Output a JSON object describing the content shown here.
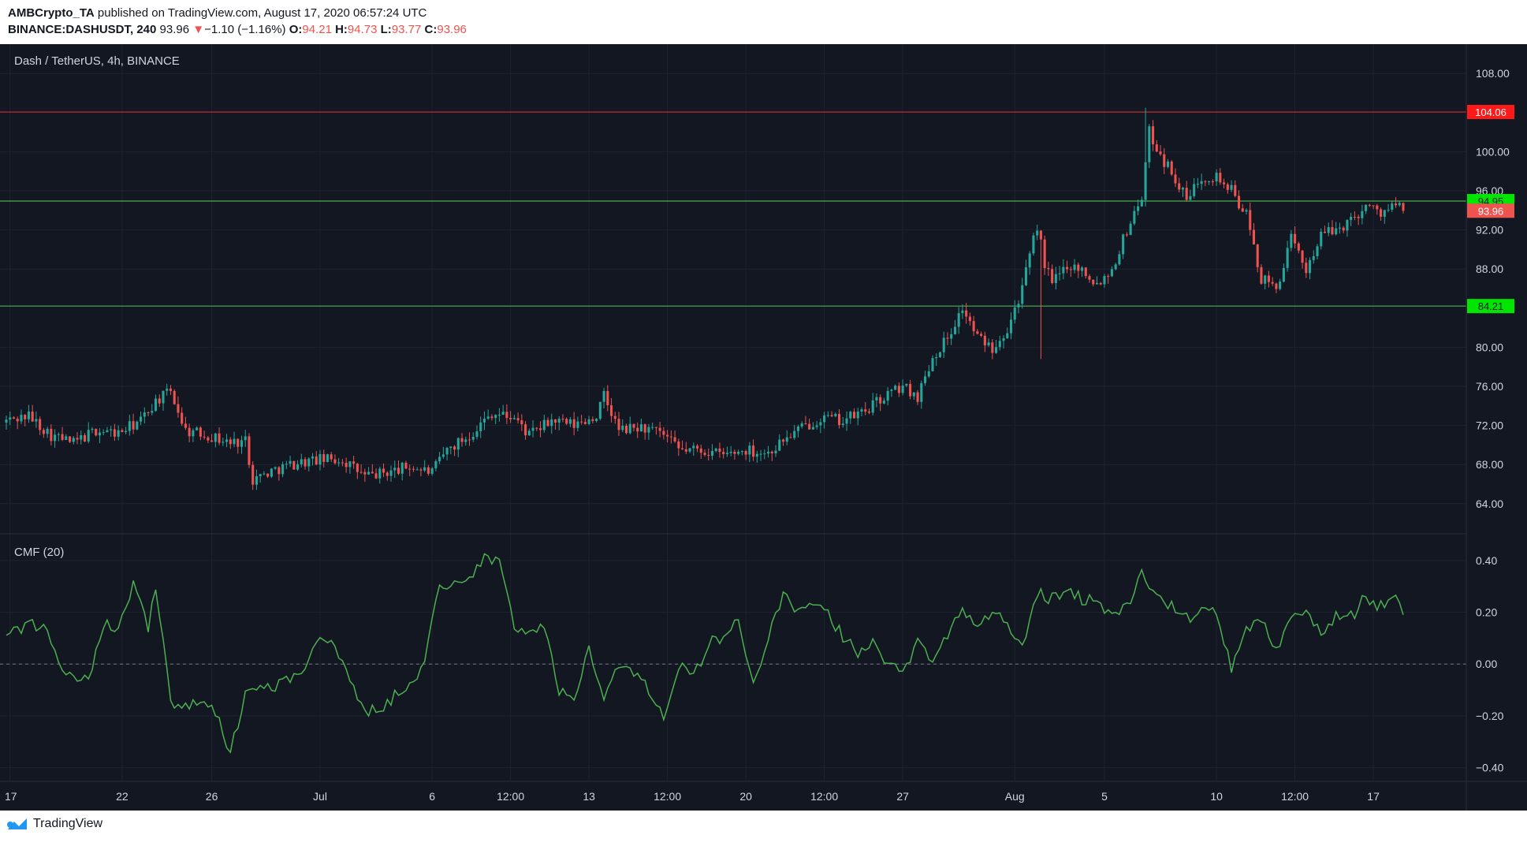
{
  "header": {
    "publisher": "AMBCrypto_TA",
    "published_text": "published on TradingView.com, August 17, 2020 06:57:24 UTC",
    "symbol": "BINANCE:DASHUSDT, 240",
    "last": "93.96",
    "change_arrow": "▼",
    "change": "−1.10 (−1.16%)",
    "o_label": "O:",
    "o_value": "94.21",
    "h_label": "H:",
    "h_value": "94.73",
    "l_label": "L:",
    "l_value": "93.77",
    "c_label": "C:",
    "c_value": "93.96"
  },
  "footer": {
    "brand": "TradingView",
    "logo_icon": "tradingview-logo-icon"
  },
  "colors": {
    "background": "#131722",
    "grid": "#1e2330",
    "up": "#26a69a",
    "down": "#ef5350",
    "resistance": "#d32f2f",
    "support": "#4caf50",
    "cmf": "#4caf50",
    "text": "#d1d4dc"
  },
  "chart_data": [
    {
      "type": "candlestick",
      "title": "Dash / TetherUS, 4h, BINANCE",
      "ylim": [
        61,
        111
      ],
      "y_ticks": [
        64,
        68,
        72,
        76,
        80,
        88,
        92,
        96,
        100,
        108
      ],
      "y_tick_labels": [
        "64.00",
        "68.00",
        "72.00",
        "76.00",
        "80.00",
        "88.00",
        "92.00",
        "96.00",
        "100.00",
        "108.00"
      ],
      "x_ticks": [
        {
          "bar": 1,
          "label": "17"
        },
        {
          "bar": 31,
          "label": "22"
        },
        {
          "bar": 55,
          "label": "26"
        },
        {
          "bar": 84,
          "label": "Jul"
        },
        {
          "bar": 114,
          "label": "6"
        },
        {
          "bar": 135,
          "label": "12:00"
        },
        {
          "bar": 156,
          "label": "13"
        },
        {
          "bar": 177,
          "label": "12:00"
        },
        {
          "bar": 198,
          "label": "20"
        },
        {
          "bar": 219,
          "label": "12:00"
        },
        {
          "bar": 240,
          "label": "27"
        },
        {
          "bar": 270,
          "label": "Aug"
        },
        {
          "bar": 294,
          "label": "5"
        },
        {
          "bar": 324,
          "label": "10"
        },
        {
          "bar": 345,
          "label": "12:00"
        },
        {
          "bar": 366,
          "label": "17"
        }
      ],
      "levels": [
        {
          "value": 104.06,
          "label": "104.06",
          "kind": "resistance"
        },
        {
          "value": 94.95,
          "label": "94.95",
          "kind": "support"
        },
        {
          "value": 84.21,
          "label": "84.21",
          "kind": "support"
        }
      ],
      "last_price": {
        "value": 93.96,
        "label": "93.96"
      },
      "close_anchors": [
        [
          0,
          72.5
        ],
        [
          6,
          73
        ],
        [
          12,
          71
        ],
        [
          18,
          70.2
        ],
        [
          24,
          71.5
        ],
        [
          30,
          71.2
        ],
        [
          36,
          72.5
        ],
        [
          40,
          74.5
        ],
        [
          44,
          75.5
        ],
        [
          48,
          71.5
        ],
        [
          54,
          71
        ],
        [
          60,
          70.2
        ],
        [
          64,
          70.5
        ],
        [
          66,
          66.5
        ],
        [
          72,
          67.5
        ],
        [
          78,
          68.2
        ],
        [
          84,
          68.5
        ],
        [
          90,
          68.5
        ],
        [
          96,
          66.8
        ],
        [
          102,
          67.2
        ],
        [
          108,
          67.8
        ],
        [
          114,
          67.2
        ],
        [
          118,
          69.5
        ],
        [
          124,
          71
        ],
        [
          130,
          73.3
        ],
        [
          136,
          72.8
        ],
        [
          140,
          71
        ],
        [
          146,
          72.5
        ],
        [
          152,
          72
        ],
        [
          158,
          73
        ],
        [
          160,
          75
        ],
        [
          164,
          71.5
        ],
        [
          170,
          71.8
        ],
        [
          176,
          71
        ],
        [
          180,
          69.5
        ],
        [
          186,
          69.5
        ],
        [
          192,
          69
        ],
        [
          198,
          69.5
        ],
        [
          204,
          69.2
        ],
        [
          208,
          70.5
        ],
        [
          212,
          71.5
        ],
        [
          218,
          72.8
        ],
        [
          224,
          72.5
        ],
        [
          230,
          73.5
        ],
        [
          236,
          75.2
        ],
        [
          240,
          76
        ],
        [
          244,
          75
        ],
        [
          248,
          79
        ],
        [
          252,
          81
        ],
        [
          256,
          84
        ],
        [
          260,
          81
        ],
        [
          264,
          80
        ],
        [
          268,
          82
        ],
        [
          272,
          86
        ],
        [
          276,
          92.5
        ],
        [
          278,
          88.5
        ],
        [
          280,
          86.5
        ],
        [
          284,
          88.5
        ],
        [
          288,
          88
        ],
        [
          292,
          86.5
        ],
        [
          296,
          88
        ],
        [
          300,
          92
        ],
        [
          304,
          95.5
        ],
        [
          306,
          102
        ],
        [
          310,
          99
        ],
        [
          312,
          98
        ],
        [
          316,
          95
        ],
        [
          320,
          97.5
        ],
        [
          324,
          97.5
        ],
        [
          328,
          96
        ],
        [
          332,
          93.5
        ],
        [
          336,
          87
        ],
        [
          340,
          86
        ],
        [
          344,
          91
        ],
        [
          348,
          88
        ],
        [
          352,
          91.5
        ],
        [
          356,
          92
        ],
        [
          360,
          93
        ],
        [
          364,
          94.5
        ],
        [
          368,
          93.8
        ],
        [
          372,
          94.5
        ],
        [
          374,
          93.96
        ]
      ],
      "highs": [
        {
          "bar": 305,
          "value": 104.5
        }
      ],
      "lows": [
        {
          "bar": 277,
          "value": 78.8
        }
      ]
    },
    {
      "type": "line",
      "title": "CMF (20)",
      "ylim": [
        -0.45,
        0.5
      ],
      "y_ticks": [
        -0.4,
        -0.2,
        0,
        0.2,
        0.4
      ],
      "y_tick_labels": [
        "−0.40",
        "−0.20",
        "0.00",
        "0.20",
        "0.40"
      ],
      "zero_line": true,
      "anchors": [
        [
          0,
          0.12
        ],
        [
          6,
          0.15
        ],
        [
          10,
          0.14
        ],
        [
          14,
          0.0
        ],
        [
          18,
          -0.04
        ],
        [
          22,
          -0.05
        ],
        [
          26,
          0.15
        ],
        [
          30,
          0.14
        ],
        [
          34,
          0.3
        ],
        [
          38,
          0.14
        ],
        [
          40,
          0.31
        ],
        [
          44,
          -0.15
        ],
        [
          50,
          -0.16
        ],
        [
          56,
          -0.18
        ],
        [
          60,
          -0.35
        ],
        [
          64,
          -0.1
        ],
        [
          70,
          -0.09
        ],
        [
          76,
          -0.06
        ],
        [
          80,
          0.0
        ],
        [
          84,
          0.12
        ],
        [
          88,
          0.05
        ],
        [
          92,
          -0.05
        ],
        [
          96,
          -0.19
        ],
        [
          100,
          -0.17
        ],
        [
          106,
          -0.1
        ],
        [
          112,
          0.0
        ],
        [
          116,
          0.32
        ],
        [
          120,
          0.3
        ],
        [
          124,
          0.34
        ],
        [
          128,
          0.42
        ],
        [
          132,
          0.38
        ],
        [
          136,
          0.15
        ],
        [
          140,
          0.12
        ],
        [
          144,
          0.14
        ],
        [
          148,
          -0.1
        ],
        [
          152,
          -0.12
        ],
        [
          156,
          0.05
        ],
        [
          160,
          -0.12
        ],
        [
          164,
          0.0
        ],
        [
          170,
          -0.05
        ],
        [
          176,
          -0.2
        ],
        [
          180,
          0.0
        ],
        [
          184,
          -0.05
        ],
        [
          188,
          0.08
        ],
        [
          192,
          0.1
        ],
        [
          196,
          0.18
        ],
        [
          200,
          -0.08
        ],
        [
          204,
          0.1
        ],
        [
          208,
          0.26
        ],
        [
          212,
          0.2
        ],
        [
          216,
          0.22
        ],
        [
          220,
          0.2
        ],
        [
          224,
          0.1
        ],
        [
          228,
          0.05
        ],
        [
          232,
          0.1
        ],
        [
          236,
          0.0
        ],
        [
          240,
          -0.04
        ],
        [
          244,
          0.1
        ],
        [
          248,
          0.02
        ],
        [
          252,
          0.12
        ],
        [
          256,
          0.2
        ],
        [
          260,
          0.15
        ],
        [
          264,
          0.2
        ],
        [
          268,
          0.15
        ],
        [
          272,
          0.06
        ],
        [
          276,
          0.28
        ],
        [
          280,
          0.25
        ],
        [
          284,
          0.28
        ],
        [
          288,
          0.25
        ],
        [
          292,
          0.26
        ],
        [
          296,
          0.18
        ],
        [
          300,
          0.22
        ],
        [
          304,
          0.35
        ],
        [
          308,
          0.26
        ],
        [
          312,
          0.22
        ],
        [
          316,
          0.18
        ],
        [
          320,
          0.2
        ],
        [
          324,
          0.2
        ],
        [
          328,
          -0.02
        ],
        [
          332,
          0.12
        ],
        [
          336,
          0.18
        ],
        [
          340,
          0.05
        ],
        [
          344,
          0.2
        ],
        [
          348,
          0.2
        ],
        [
          352,
          0.12
        ],
        [
          356,
          0.18
        ],
        [
          360,
          0.18
        ],
        [
          364,
          0.26
        ],
        [
          368,
          0.22
        ],
        [
          372,
          0.25
        ],
        [
          374,
          0.19
        ]
      ]
    }
  ]
}
